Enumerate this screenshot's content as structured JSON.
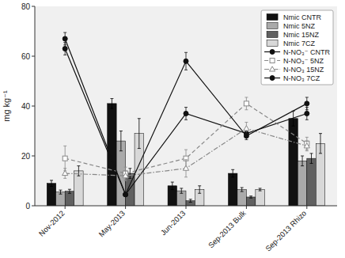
{
  "chart_data": {
    "type": "bar",
    "y_label": "mg kg⁻¹",
    "categories": [
      "Nov-2012",
      "May-2013",
      "Jun-2013",
      "Sep-2013 Bulk",
      "Sep-2013 Rhizo"
    ],
    "ylim": [
      0,
      80
    ],
    "yticks": [
      0,
      20,
      40,
      60,
      80
    ],
    "grid": false,
    "legend": "upper right",
    "series": [
      {
        "name": "Nmic CNTR",
        "type": "bar",
        "color": "#111111",
        "values": [
          9,
          41,
          8,
          13,
          35
        ],
        "errors": [
          1.2,
          2.0,
          1.5,
          1.5,
          3.0
        ]
      },
      {
        "name": "Nmic 5NZ",
        "type": "bar",
        "color": "#aaaaaa",
        "values": [
          5.5,
          26,
          6,
          6.5,
          18
        ],
        "errors": [
          0.8,
          4.0,
          1.0,
          0.8,
          2.0
        ]
      },
      {
        "name": "Nmic 15NZ",
        "type": "bar",
        "color": "#606060",
        "values": [
          5.8,
          13,
          2,
          3.5,
          19
        ],
        "errors": [
          0.8,
          2.0,
          0.6,
          0.4,
          2.0
        ]
      },
      {
        "name": "Nmic 7CZ",
        "type": "bar",
        "color": "#d8d8d8",
        "values": [
          14,
          29,
          6.5,
          6.5,
          25
        ],
        "errors": [
          2.0,
          6.0,
          1.5,
          0.5,
          4.0
        ]
      },
      {
        "name": "N-NO₃⁻ CNTR",
        "type": "line",
        "color": "#111111",
        "marker": "circle",
        "line_style": "solid",
        "values": [
          63,
          4.5,
          37,
          29,
          37
        ],
        "errors": [
          2.5,
          0.5,
          2.5,
          1.5,
          2.5
        ]
      },
      {
        "name": "N-NO₃⁻ 5NZ",
        "type": "line",
        "color": "#888888",
        "marker": "open-square",
        "line_style": "dashed",
        "values": [
          19,
          13,
          19,
          41,
          25
        ],
        "errors": [
          5.0,
          2.5,
          3.5,
          2.5,
          2.5
        ]
      },
      {
        "name": "N-NO₃ 15NZ",
        "type": "line",
        "color": "#888888",
        "marker": "open-triangle",
        "line_style": "dashdot",
        "values": [
          13,
          12,
          15,
          31,
          24
        ],
        "errors": [
          2.0,
          2.0,
          3.5,
          2.5,
          2.0
        ]
      },
      {
        "name": "N-NO₃ 7CZ",
        "type": "line",
        "color": "#111111",
        "marker": "circle",
        "line_style": "solid",
        "values": [
          67,
          4.5,
          58,
          28,
          41
        ],
        "errors": [
          2.5,
          0.5,
          3.5,
          1.5,
          2.5
        ]
      }
    ]
  }
}
